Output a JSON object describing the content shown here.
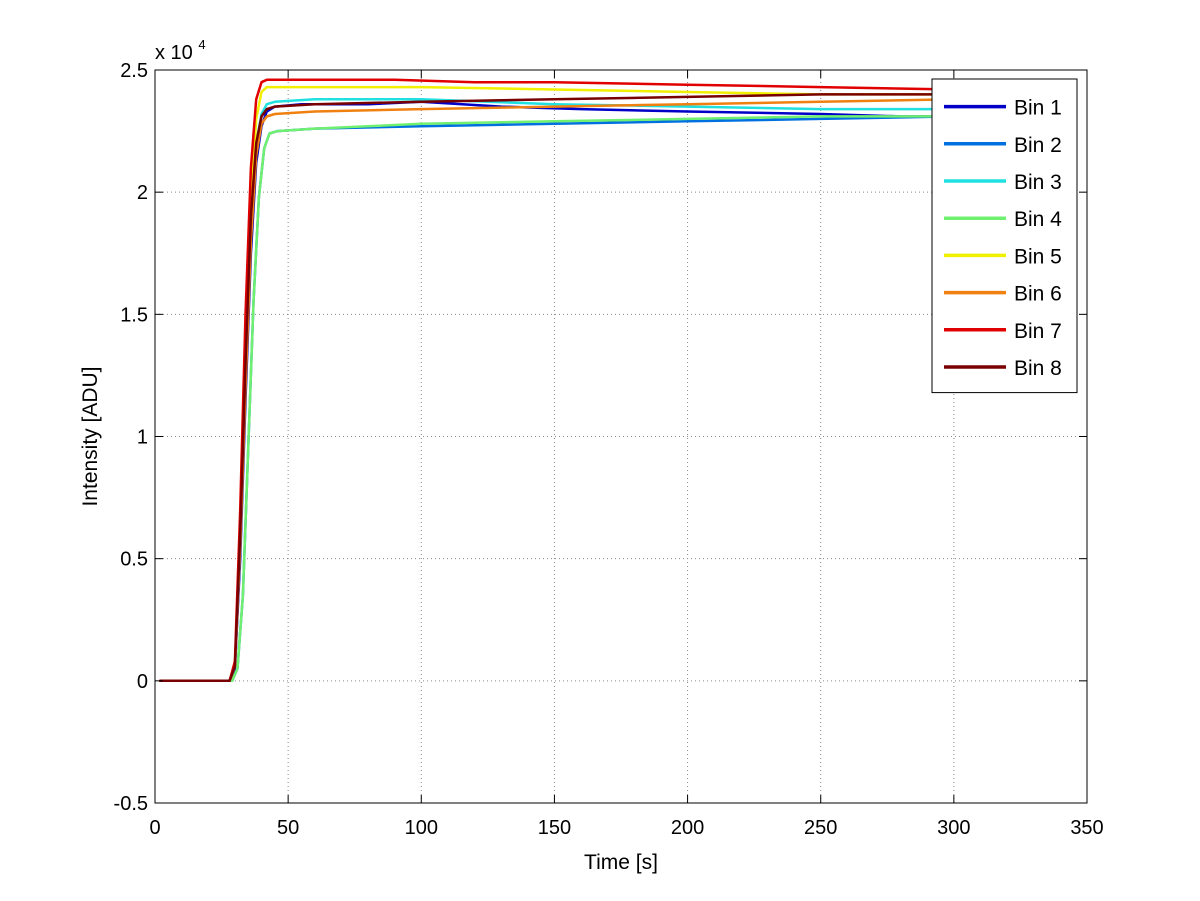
{
  "chart_data": {
    "type": "line",
    "xlabel": "Time [s]",
    "ylabel": "Intensity [ADU]",
    "y_exponent_label": "x 10",
    "y_exponent_power": "4",
    "xlim": [
      0,
      350
    ],
    "ylim": [
      -0.5,
      2.5
    ],
    "x_ticks": [
      0,
      50,
      100,
      150,
      200,
      250,
      300,
      350
    ],
    "x_tick_labels": [
      "0",
      "50",
      "100",
      "150",
      "200",
      "250",
      "300",
      "350"
    ],
    "y_ticks": [
      -0.5,
      0,
      0.5,
      1,
      1.5,
      2,
      2.5
    ],
    "y_tick_labels": [
      "-0.5",
      "0",
      "0.5",
      "1",
      "1.5",
      "2",
      "2.5"
    ],
    "grid": true,
    "legend_position": "top-right",
    "series": [
      {
        "name": "Bin 1",
        "color": "#0000c8",
        "x": [
          2,
          28,
          30,
          32,
          34,
          36,
          38,
          40,
          42,
          45,
          55,
          80,
          100,
          130,
          160,
          200,
          250,
          280,
          300
        ],
        "y": [
          0,
          0,
          0.05,
          0.5,
          1.15,
          1.75,
          2.12,
          2.27,
          2.33,
          2.35,
          2.36,
          2.36,
          2.37,
          2.35,
          2.34,
          2.33,
          2.32,
          2.31,
          2.31
        ]
      },
      {
        "name": "Bin 2",
        "color": "#0070e0",
        "x": [
          2,
          29,
          31,
          33,
          35,
          37,
          39,
          41,
          43,
          46,
          60,
          100,
          150,
          200,
          250,
          300
        ],
        "y": [
          0,
          0,
          0.05,
          0.35,
          0.95,
          1.55,
          1.98,
          2.18,
          2.24,
          2.25,
          2.26,
          2.27,
          2.28,
          2.29,
          2.3,
          2.31
        ]
      },
      {
        "name": "Bin 3",
        "color": "#20e0e0",
        "x": [
          2,
          28,
          30,
          32,
          34,
          36,
          38,
          40,
          42,
          45,
          60,
          100,
          150,
          200,
          250,
          300
        ],
        "y": [
          0,
          0,
          0.06,
          0.55,
          1.25,
          1.85,
          2.2,
          2.32,
          2.36,
          2.37,
          2.38,
          2.38,
          2.36,
          2.35,
          2.34,
          2.34
        ]
      },
      {
        "name": "Bin 4",
        "color": "#70f070",
        "x": [
          2,
          29,
          31,
          33,
          35,
          37,
          39,
          41,
          43,
          46,
          60,
          100,
          150,
          200,
          250,
          300
        ],
        "y": [
          0,
          0,
          0.05,
          0.35,
          0.95,
          1.55,
          1.98,
          2.18,
          2.24,
          2.25,
          2.26,
          2.28,
          2.29,
          2.3,
          2.31,
          2.31
        ]
      },
      {
        "name": "Bin 5",
        "color": "#f0f000",
        "x": [
          2,
          28,
          30,
          32,
          34,
          36,
          38,
          40,
          42,
          45,
          60,
          100,
          150,
          200,
          250,
          300
        ],
        "y": [
          0,
          0,
          0.06,
          0.6,
          1.3,
          1.95,
          2.3,
          2.41,
          2.43,
          2.43,
          2.43,
          2.43,
          2.42,
          2.41,
          2.4,
          2.4
        ]
      },
      {
        "name": "Bin 6",
        "color": "#f08010",
        "x": [
          2,
          28,
          30,
          32,
          34,
          36,
          38,
          40,
          42,
          45,
          60,
          100,
          150,
          200,
          250,
          300
        ],
        "y": [
          0,
          0,
          0.06,
          0.55,
          1.2,
          1.8,
          2.15,
          2.28,
          2.31,
          2.32,
          2.33,
          2.34,
          2.35,
          2.36,
          2.37,
          2.38
        ]
      },
      {
        "name": "Bin 7",
        "color": "#e00000",
        "x": [
          2,
          28,
          30,
          32,
          34,
          36,
          38,
          40,
          42,
          45,
          60,
          90,
          120,
          150,
          200,
          250,
          300,
          320,
          335
        ],
        "y": [
          0,
          0,
          0.08,
          0.7,
          1.5,
          2.1,
          2.38,
          2.45,
          2.46,
          2.46,
          2.46,
          2.46,
          2.45,
          2.45,
          2.44,
          2.43,
          2.42,
          2.42,
          2.46
        ]
      },
      {
        "name": "Bin 8",
        "color": "#780000",
        "x": [
          2,
          28,
          30,
          32,
          34,
          36,
          38,
          40,
          42,
          45,
          60,
          100,
          150,
          200,
          250,
          300,
          335
        ],
        "y": [
          0,
          0,
          0.06,
          0.6,
          1.3,
          1.9,
          2.2,
          2.31,
          2.34,
          2.35,
          2.36,
          2.37,
          2.38,
          2.39,
          2.4,
          2.4,
          2.41
        ]
      }
    ]
  }
}
